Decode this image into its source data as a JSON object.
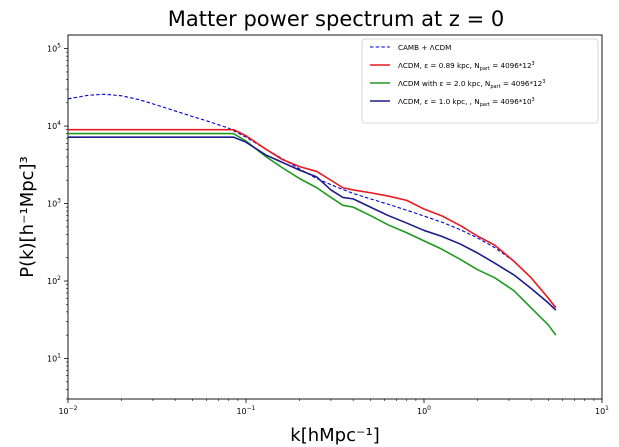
{
  "chart_data": {
    "type": "line",
    "title": "Matter power spectrum at z = 0",
    "xlabel": "k[hMpc⁻¹]",
    "ylabel": "P(k)[h⁻¹Mpc]³",
    "xscale": "log",
    "yscale": "log",
    "xlim": [
      0.01,
      10
    ],
    "ylim": [
      3,
      150000
    ],
    "x_ticks": [
      {
        "value": 0.01,
        "base": "10",
        "exp": "−2"
      },
      {
        "value": 0.1,
        "base": "10",
        "exp": "−1"
      },
      {
        "value": 1,
        "base": "10",
        "exp": "0"
      },
      {
        "value": 10,
        "base": "10",
        "exp": "1"
      }
    ],
    "y_ticks": [
      {
        "value": 10,
        "base": "10",
        "exp": "1"
      },
      {
        "value": 100,
        "base": "10",
        "exp": "2"
      },
      {
        "value": 1000,
        "base": "10",
        "exp": "3"
      },
      {
        "value": 10000,
        "base": "10",
        "exp": "4"
      },
      {
        "value": 100000,
        "base": "10",
        "exp": "5"
      }
    ],
    "grid": false,
    "legend_position": "top-right",
    "series": [
      {
        "name": "CAMB + ΛCDM",
        "color": "#0000cc",
        "dashed": true,
        "x": [
          0.01,
          0.013,
          0.016,
          0.02,
          0.025,
          0.032,
          0.04,
          0.05,
          0.063,
          0.08,
          0.1,
          0.13,
          0.16,
          0.2,
          0.25,
          0.32,
          0.4,
          0.5,
          0.63,
          0.8,
          1.0,
          1.3,
          1.6,
          2.0,
          2.5,
          3.2,
          4.0,
          5.0,
          5.5
        ],
        "y": [
          22500,
          25000,
          25800,
          24600,
          22000,
          18500,
          15700,
          13300,
          11300,
          9400,
          7200,
          5000,
          3800,
          2800,
          2100,
          1650,
          1350,
          1150,
          980,
          820,
          690,
          560,
          460,
          360,
          270,
          180,
          110,
          60,
          46
        ]
      },
      {
        "name": "ΛCDM, ε = 0.89 kpc, N_part = 4096*12³",
        "color": "#e8191f",
        "dashed": false,
        "x": [
          0.01,
          0.085,
          0.1,
          0.13,
          0.16,
          0.2,
          0.25,
          0.3,
          0.35,
          0.4,
          0.5,
          0.63,
          0.8,
          1.0,
          1.25,
          1.6,
          2.0,
          2.5,
          3.2,
          4.0,
          5.0,
          5.5
        ],
        "y": [
          9000,
          9000,
          7500,
          5000,
          3700,
          3000,
          2600,
          2000,
          1600,
          1500,
          1380,
          1250,
          1100,
          850,
          700,
          520,
          380,
          290,
          180,
          110,
          60,
          45
        ]
      },
      {
        "name": "ΛCDM with ε = 2.0 kpc, N_part = 4096*12³",
        "color": "#1e9a1e",
        "dashed": false,
        "x": [
          0.01,
          0.085,
          0.1,
          0.13,
          0.16,
          0.2,
          0.25,
          0.3,
          0.35,
          0.4,
          0.5,
          0.63,
          0.8,
          1.0,
          1.25,
          1.6,
          2.0,
          2.5,
          3.2,
          4.0,
          5.0,
          5.5
        ],
        "y": [
          8000,
          8000,
          6400,
          4000,
          2900,
          2100,
          1600,
          1200,
          950,
          900,
          700,
          530,
          420,
          330,
          260,
          190,
          140,
          110,
          75,
          45,
          27,
          20
        ]
      },
      {
        "name": "ΛCDM, ε = 1.0 kpc, , N_part = 4096*10³",
        "color": "#1c1c8c",
        "dashed": false,
        "x": [
          0.01,
          0.085,
          0.1,
          0.13,
          0.16,
          0.2,
          0.25,
          0.3,
          0.35,
          0.4,
          0.5,
          0.63,
          0.8,
          1.0,
          1.25,
          1.6,
          2.0,
          2.5,
          3.2,
          4.0,
          5.0,
          5.5
        ],
        "y": [
          7200,
          7200,
          6200,
          4200,
          3400,
          2700,
          2200,
          1500,
          1200,
          1150,
          900,
          700,
          560,
          450,
          380,
          300,
          230,
          170,
          120,
          80,
          52,
          42
        ]
      }
    ]
  },
  "legend_entries": [
    {
      "color": "#0000cc",
      "dashed": true,
      "text": "CAMB + ΛCDM"
    },
    {
      "color": "#e8191f",
      "dashed": false,
      "text_pre": "ΛCDM, ε = 0.89 kpc, N",
      "text_sub": "part",
      "text_mid": " = 4096*12",
      "text_sup": "3"
    },
    {
      "color": "#1e9a1e",
      "dashed": false,
      "text_pre": "ΛCDM with ε = 2.0 kpc, N",
      "text_sub": "part",
      "text_mid": " = 4096*12",
      "text_sup": "3"
    },
    {
      "color": "#1c1c8c",
      "dashed": false,
      "text_pre": "ΛCDM, ε = 1.0 kpc, , N",
      "text_sub": "part",
      "text_mid": " = 4096*10",
      "text_sup": "3"
    }
  ]
}
